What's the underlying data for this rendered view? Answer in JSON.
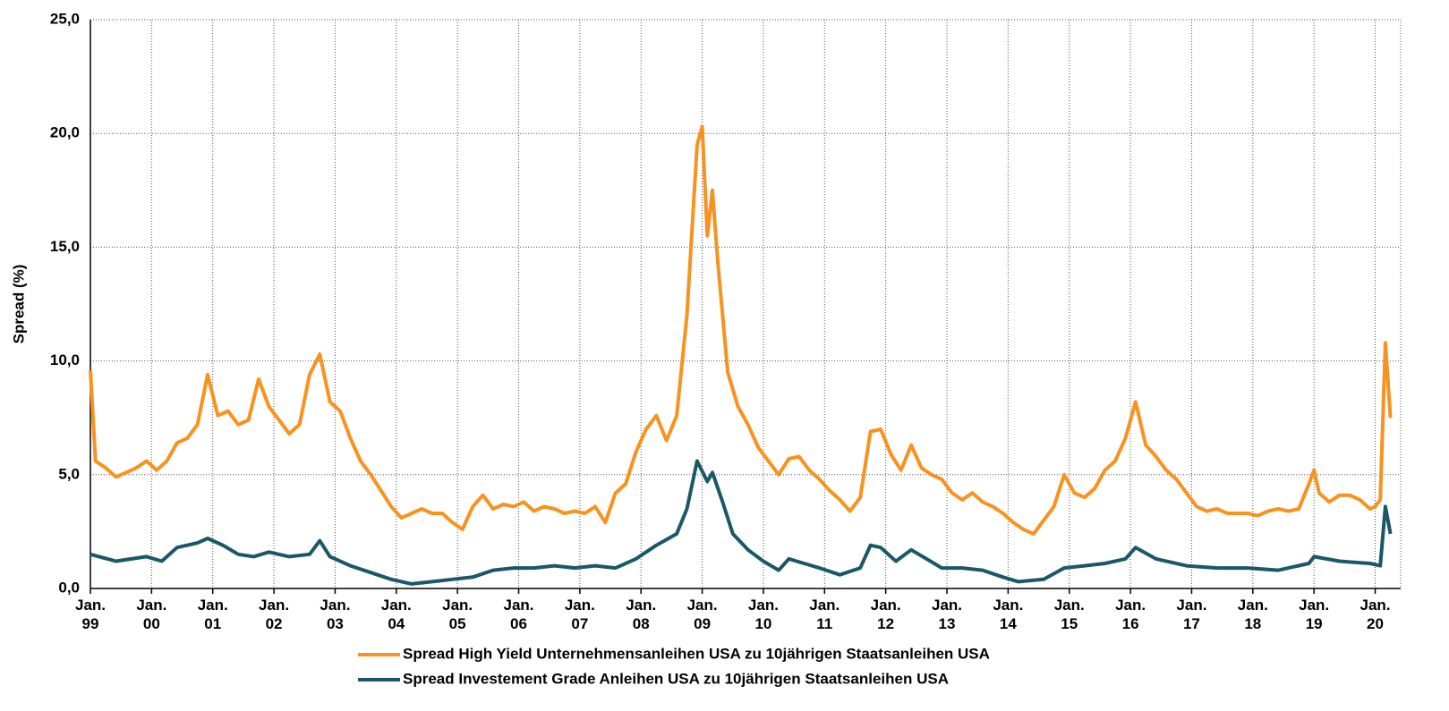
{
  "chart_data": {
    "type": "line",
    "ylabel": "Spread (%)",
    "ylim": [
      0,
      25
    ],
    "yticks": [
      {
        "value": 0,
        "label": "0,0"
      },
      {
        "value": 5,
        "label": "5,0"
      },
      {
        "value": 10,
        "label": "10,0"
      },
      {
        "value": 15,
        "label": "15,0"
      },
      {
        "value": 20,
        "label": "20,0"
      },
      {
        "value": 25,
        "label": "25,0"
      }
    ],
    "xlim": [
      "1999-01",
      "2020-06"
    ],
    "xticks": [
      {
        "value": "1999-01",
        "label": "Jan.\n99"
      },
      {
        "value": "2000-01",
        "label": "Jan.\n00"
      },
      {
        "value": "2001-01",
        "label": "Jan.\n01"
      },
      {
        "value": "2002-01",
        "label": "Jan.\n02"
      },
      {
        "value": "2003-01",
        "label": "Jan.\n03"
      },
      {
        "value": "2004-01",
        "label": "Jan.\n04"
      },
      {
        "value": "2005-01",
        "label": "Jan.\n05"
      },
      {
        "value": "2006-01",
        "label": "Jan.\n06"
      },
      {
        "value": "2007-01",
        "label": "Jan.\n07"
      },
      {
        "value": "2008-01",
        "label": "Jan.\n08"
      },
      {
        "value": "2009-01",
        "label": "Jan.\n09"
      },
      {
        "value": "2010-01",
        "label": "Jan.\n10"
      },
      {
        "value": "2011-01",
        "label": "Jan.\n11"
      },
      {
        "value": "2012-01",
        "label": "Jan.\n12"
      },
      {
        "value": "2013-01",
        "label": "Jan.\n13"
      },
      {
        "value": "2014-01",
        "label": "Jan.\n14"
      },
      {
        "value": "2015-01",
        "label": "Jan.\n15"
      },
      {
        "value": "2016-01",
        "label": "Jan.\n16"
      },
      {
        "value": "2017-01",
        "label": "Jan.\n17"
      },
      {
        "value": "2018-01",
        "label": "Jan.\n18"
      },
      {
        "value": "2019-01",
        "label": "Jan.\n19"
      },
      {
        "value": "2020-01",
        "label": "Jan.\n20"
      }
    ],
    "grid": true,
    "legend": "bottom",
    "series": [
      {
        "name": "Spread High Yield Unternehmensanleihen USA zu 10jährigen Staatsanleihen USA",
        "color": "#f7931e",
        "x": [
          "1999-01",
          "1999-02",
          "1999-04",
          "1999-06",
          "1999-08",
          "1999-10",
          "1999-12",
          "2000-02",
          "2000-04",
          "2000-06",
          "2000-08",
          "2000-10",
          "2000-12",
          "2001-02",
          "2001-04",
          "2001-06",
          "2001-08",
          "2001-10",
          "2001-12",
          "2002-02",
          "2002-04",
          "2002-06",
          "2002-08",
          "2002-10",
          "2002-12",
          "2003-02",
          "2003-04",
          "2003-06",
          "2003-08",
          "2003-10",
          "2003-12",
          "2004-02",
          "2004-04",
          "2004-06",
          "2004-08",
          "2004-10",
          "2004-12",
          "2005-02",
          "2005-04",
          "2005-06",
          "2005-08",
          "2005-10",
          "2005-12",
          "2006-02",
          "2006-04",
          "2006-06",
          "2006-08",
          "2006-10",
          "2006-12",
          "2007-02",
          "2007-04",
          "2007-06",
          "2007-08",
          "2007-10",
          "2007-12",
          "2008-02",
          "2008-04",
          "2008-06",
          "2008-08",
          "2008-10",
          "2008-12",
          "2009-01",
          "2009-02",
          "2009-03",
          "2009-04",
          "2009-06",
          "2009-08",
          "2009-10",
          "2009-12",
          "2010-02",
          "2010-04",
          "2010-06",
          "2010-08",
          "2010-10",
          "2010-12",
          "2011-02",
          "2011-04",
          "2011-06",
          "2011-08",
          "2011-10",
          "2011-12",
          "2012-02",
          "2012-04",
          "2012-06",
          "2012-08",
          "2012-10",
          "2012-12",
          "2013-02",
          "2013-04",
          "2013-06",
          "2013-08",
          "2013-10",
          "2013-12",
          "2014-02",
          "2014-04",
          "2014-06",
          "2014-08",
          "2014-10",
          "2014-12",
          "2015-02",
          "2015-04",
          "2015-06",
          "2015-08",
          "2015-10",
          "2015-12",
          "2016-02",
          "2016-04",
          "2016-06",
          "2016-08",
          "2016-10",
          "2016-12",
          "2017-02",
          "2017-04",
          "2017-06",
          "2017-08",
          "2017-10",
          "2017-12",
          "2018-02",
          "2018-04",
          "2018-06",
          "2018-08",
          "2018-10",
          "2018-12",
          "2019-01",
          "2019-02",
          "2019-04",
          "2019-06",
          "2019-08",
          "2019-10",
          "2019-12",
          "2020-01",
          "2020-02",
          "2020-03",
          "2020-04"
        ],
        "values": [
          9.6,
          5.6,
          5.3,
          4.9,
          5.1,
          5.3,
          5.6,
          5.2,
          5.6,
          6.4,
          6.6,
          7.2,
          9.4,
          7.6,
          7.8,
          7.2,
          7.4,
          9.2,
          8.0,
          7.4,
          6.8,
          7.2,
          9.4,
          10.3,
          8.2,
          7.8,
          6.6,
          5.6,
          5.0,
          4.3,
          3.6,
          3.1,
          3.3,
          3.5,
          3.3,
          3.3,
          2.9,
          2.6,
          3.6,
          4.1,
          3.5,
          3.7,
          3.6,
          3.8,
          3.4,
          3.6,
          3.5,
          3.3,
          3.4,
          3.3,
          3.6,
          2.9,
          4.2,
          4.6,
          6.0,
          7.0,
          7.6,
          6.5,
          7.6,
          12.0,
          19.5,
          20.3,
          15.5,
          17.5,
          14.5,
          9.5,
          8.0,
          7.2,
          6.2,
          5.6,
          5.0,
          5.7,
          5.8,
          5.2,
          4.8,
          4.3,
          3.9,
          3.4,
          4.0,
          6.9,
          7.0,
          5.9,
          5.2,
          6.3,
          5.3,
          5.0,
          4.8,
          4.2,
          3.9,
          4.2,
          3.8,
          3.6,
          3.3,
          2.9,
          2.6,
          2.4,
          3.0,
          3.6,
          5.0,
          4.2,
          4.0,
          4.4,
          5.2,
          5.6,
          6.6,
          8.2,
          6.3,
          5.8,
          5.2,
          4.8,
          4.2,
          3.6,
          3.4,
          3.5,
          3.3,
          3.3,
          3.3,
          3.2,
          3.4,
          3.5,
          3.4,
          3.5,
          4.6,
          5.2,
          4.2,
          3.8,
          4.1,
          4.1,
          3.9,
          3.5,
          3.6,
          3.9,
          10.8,
          7.5
        ]
      },
      {
        "name": "Spread Investement Grade Anleihen USA zu 10jährigen Staatsanleihen USA",
        "color": "#1a5868",
        "x": [
          "1999-01",
          "1999-06",
          "1999-12",
          "2000-03",
          "2000-06",
          "2000-10",
          "2000-12",
          "2001-03",
          "2001-06",
          "2001-09",
          "2001-12",
          "2002-04",
          "2002-08",
          "2002-10",
          "2002-12",
          "2003-04",
          "2003-08",
          "2003-12",
          "2004-04",
          "2004-08",
          "2004-12",
          "2005-04",
          "2005-08",
          "2005-12",
          "2006-04",
          "2006-08",
          "2006-12",
          "2007-04",
          "2007-08",
          "2007-12",
          "2008-04",
          "2008-08",
          "2008-10",
          "2008-12",
          "2009-02",
          "2009-03",
          "2009-05",
          "2009-07",
          "2009-10",
          "2010-01",
          "2010-04",
          "2010-06",
          "2010-09",
          "2010-12",
          "2011-04",
          "2011-08",
          "2011-10",
          "2011-12",
          "2012-03",
          "2012-06",
          "2012-09",
          "2012-12",
          "2013-04",
          "2013-08",
          "2013-12",
          "2014-03",
          "2014-08",
          "2014-12",
          "2015-04",
          "2015-08",
          "2015-12",
          "2016-02",
          "2016-06",
          "2016-12",
          "2017-06",
          "2017-12",
          "2018-06",
          "2018-12",
          "2019-01",
          "2019-06",
          "2019-12",
          "2020-02",
          "2020-03",
          "2020-04"
        ],
        "values": [
          1.5,
          1.2,
          1.4,
          1.2,
          1.8,
          2.0,
          2.2,
          1.9,
          1.5,
          1.4,
          1.6,
          1.4,
          1.5,
          2.1,
          1.4,
          1.0,
          0.7,
          0.4,
          0.2,
          0.3,
          0.4,
          0.5,
          0.8,
          0.9,
          0.9,
          1.0,
          0.9,
          1.0,
          0.9,
          1.3,
          1.9,
          2.4,
          3.5,
          5.6,
          4.7,
          5.1,
          3.8,
          2.4,
          1.7,
          1.2,
          0.8,
          1.3,
          1.1,
          0.9,
          0.6,
          0.9,
          1.9,
          1.8,
          1.2,
          1.7,
          1.3,
          0.9,
          0.9,
          0.8,
          0.5,
          0.3,
          0.4,
          0.9,
          1.0,
          1.1,
          1.3,
          1.8,
          1.3,
          1.0,
          0.9,
          0.9,
          0.8,
          1.1,
          1.4,
          1.2,
          1.1,
          1.0,
          3.6,
          2.4
        ]
      }
    ]
  }
}
